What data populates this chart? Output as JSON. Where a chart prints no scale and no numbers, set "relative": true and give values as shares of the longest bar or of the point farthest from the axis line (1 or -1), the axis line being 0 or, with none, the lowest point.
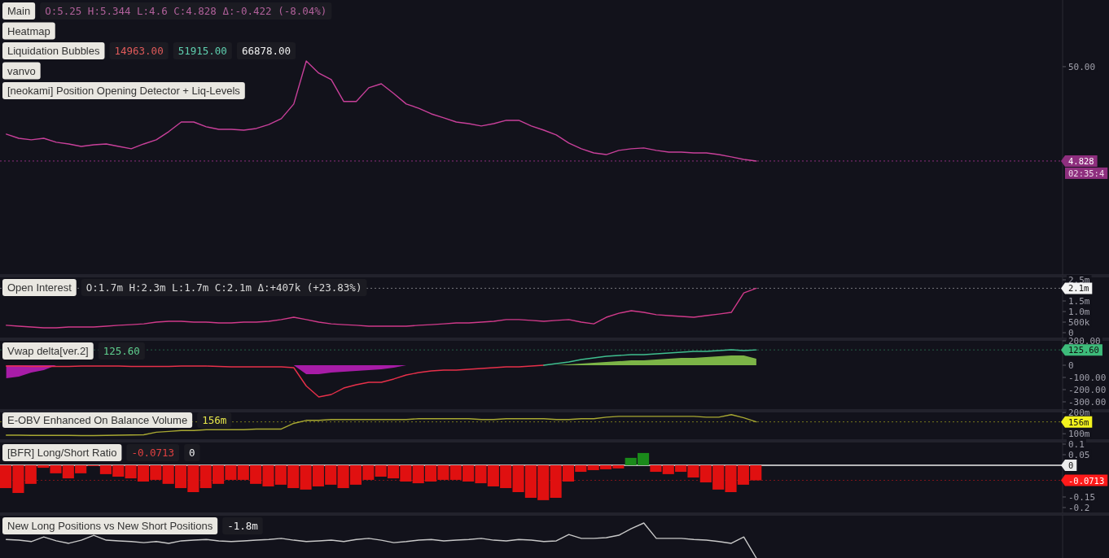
{
  "chart_data": [
    {
      "type": "line",
      "title": "Main",
      "subtitle": "O:5.25 H:5.344 L:4.6 C:4.828 Δ:-0.422 (-8.04%)",
      "annotations": [
        "Heatmap",
        "Liquidation Bubbles",
        "14963.00",
        "51915.00",
        "66878.00",
        "vanvo",
        "[neokami] Position Opening Detector + Liq-Levels",
        "02:35:4"
      ],
      "ylim": [
        -49.7,
        81.9
      ],
      "yticks": [
        {
          "value": 50,
          "label": "50.00"
        },
        {
          "value": 4.828,
          "label": "4.828"
        }
      ],
      "ref_lines": [
        {
          "axis": "y",
          "value": 4.828,
          "color": "#8e2f7e",
          "line_style": "dotted"
        }
      ],
      "categories": [
        null,
        null,
        null,
        null,
        null,
        null,
        null,
        null,
        null,
        null,
        null,
        null,
        null,
        null,
        null,
        null,
        null,
        null,
        null,
        null,
        null,
        null,
        null,
        null,
        null,
        null,
        null,
        null,
        null,
        null,
        null,
        null,
        null,
        null,
        null,
        null,
        null,
        null,
        null,
        null,
        null,
        null,
        null,
        null,
        null,
        null,
        null,
        null,
        null,
        null,
        null,
        null,
        null,
        null,
        null,
        null,
        null,
        null,
        null,
        null,
        null,
        null,
        null,
        null,
        null,
        null,
        null,
        null,
        null,
        null,
        null,
        null,
        null,
        null,
        null,
        null,
        null,
        null,
        null,
        null,
        null,
        null,
        null,
        null,
        null
      ],
      "series": [
        {
          "color": "#c8409a",
          "values": [
            17.7,
            15.7,
            15.0,
            15.7,
            13.8,
            13.0,
            11.8,
            12.6,
            13.0,
            11.8,
            10.7,
            13.0,
            15.0,
            18.9,
            23.5,
            23.5,
            21.2,
            20.0,
            20.0,
            19.6,
            20.4,
            22.3,
            25.1,
            32.1,
            52.7,
            46.9,
            43.8,
            33.3,
            33.3,
            39.9,
            41.8,
            37.1,
            32.1,
            30.1,
            27.4,
            25.5,
            23.5,
            22.7,
            21.6,
            22.7,
            24.3,
            24.3,
            21.6,
            19.6,
            17.3,
            13.4,
            10.7,
            8.7,
            7.9,
            9.9,
            10.7,
            11.1,
            9.9,
            9.1,
            9.1,
            8.7,
            8.7,
            7.9,
            6.8,
            5.6,
            4.828,
            null,
            null,
            null,
            null,
            null,
            null,
            null,
            null,
            null,
            null,
            null,
            null,
            null,
            null,
            null,
            null,
            null,
            null,
            null,
            null,
            null,
            null,
            null,
            null
          ]
        }
      ]
    },
    {
      "type": "line",
      "title": "Open Interest",
      "subtitle": "O:1.7m H:2.3m L:1.7m C:2.1m Δ:+407k (+23.83%)",
      "categories": [
        null,
        null,
        null,
        null,
        null,
        null,
        null,
        null,
        null,
        null,
        null,
        null,
        null,
        null,
        null,
        null,
        null,
        null,
        null,
        null,
        null,
        null,
        null,
        null,
        null,
        null,
        null,
        null,
        null,
        null,
        null,
        null,
        null,
        null,
        null,
        null,
        null,
        null,
        null,
        null,
        null,
        null,
        null,
        null,
        null,
        null,
        null,
        null,
        null,
        null,
        null,
        null,
        null,
        null,
        null,
        null,
        null,
        null,
        null,
        null,
        null,
        null,
        null,
        null,
        null,
        null,
        null,
        null,
        null,
        null,
        null,
        null,
        null,
        null,
        null,
        null,
        null,
        null,
        null,
        null,
        null,
        null,
        null,
        null,
        null
      ],
      "ylim": [
        -269000,
        2654000
      ],
      "yticks": [
        0,
        {
          "value": 500000,
          "label": "500k"
        },
        {
          "value": 1000000,
          "label": "1.0m"
        },
        {
          "value": 1500000,
          "label": "1.5m"
        },
        {
          "value": 2500000,
          "label": "2.5m"
        }
      ],
      "ref_lines": [
        {
          "axis": "y",
          "value": 2100000,
          "label": "2.1m",
          "color": "#f4f4f4"
        }
      ],
      "series": [
        {
          "color": "#d03a8a",
          "values": [
            350000,
            310000,
            270000,
            230000,
            230000,
            270000,
            270000,
            270000,
            310000,
            350000,
            380000,
            420000,
            500000,
            540000,
            540000,
            500000,
            500000,
            460000,
            460000,
            500000,
            500000,
            540000,
            620000,
            730000,
            620000,
            500000,
            420000,
            380000,
            350000,
            310000,
            310000,
            310000,
            310000,
            350000,
            380000,
            420000,
            460000,
            460000,
            500000,
            540000,
            620000,
            620000,
            580000,
            540000,
            580000,
            620000,
            500000,
            420000,
            730000,
            920000,
            1040000,
            960000,
            850000,
            810000,
            770000,
            730000,
            810000,
            880000,
            960000,
            1880000,
            2100000,
            null,
            null,
            null,
            null,
            null,
            null,
            null,
            null,
            null,
            null,
            null,
            null,
            null,
            null,
            null,
            null,
            null,
            null,
            null,
            null,
            null,
            null,
            null,
            null
          ]
        }
      ]
    },
    {
      "type": "line",
      "title": "Vwap delta[ver.2]",
      "annotations": [
        "125.60"
      ],
      "categories": [
        null,
        null,
        null,
        null,
        null,
        null,
        null,
        null,
        null,
        null,
        null,
        null,
        null,
        null,
        null,
        null,
        null,
        null,
        null,
        null,
        null,
        null,
        null,
        null,
        null,
        null,
        null,
        null,
        null,
        null,
        null,
        null,
        null,
        null,
        null,
        null,
        null,
        null,
        null,
        null,
        null,
        null,
        null,
        null,
        null,
        null,
        null,
        null,
        null,
        null,
        null,
        null,
        null,
        null,
        null,
        null,
        null,
        null,
        null,
        null,
        null,
        null,
        null,
        null,
        null,
        null,
        null,
        null,
        null,
        null,
        null,
        null,
        null,
        null,
        null,
        null,
        null,
        null,
        null,
        null,
        null,
        null,
        null,
        null,
        null
      ],
      "ylim": [
        -366.7,
        206.7
      ],
      "yticks": [
        {
          "value": 200,
          "label": "200.00"
        },
        0,
        {
          "value": -100,
          "label": "-100.00"
        },
        {
          "value": -200,
          "label": "-200.00"
        },
        {
          "value": -300,
          "label": "-300.00"
        }
      ],
      "ref_lines": [
        {
          "axis": "y",
          "value": 125.6,
          "label": "125.60",
          "color": "#3dbb7a"
        }
      ],
      "series": [
        {
          "type": "area",
          "color": "#c21fbf",
          "values": [
            -107,
            -93,
            -60,
            -40,
            0,
            null,
            null,
            null,
            null,
            null,
            null,
            null,
            null,
            null,
            null,
            null,
            null,
            null,
            null,
            null,
            null,
            null,
            null,
            0,
            -73,
            -73,
            -60,
            -53,
            -47,
            -40,
            -33,
            -20,
            0,
            null,
            null,
            null,
            null,
            null,
            null,
            null,
            null,
            null,
            null,
            null,
            null,
            null,
            null,
            null,
            null,
            null,
            null,
            null,
            null,
            null,
            null,
            null,
            null,
            null,
            null,
            null,
            null,
            null,
            null,
            null,
            null,
            null,
            null,
            null,
            null,
            null,
            null,
            null,
            null,
            null,
            null,
            null,
            null,
            null,
            null,
            null,
            null,
            null,
            null,
            null,
            null
          ]
        },
        {
          "type": "area",
          "color": "#8fd14f",
          "values": [
            null,
            null,
            null,
            null,
            null,
            null,
            null,
            null,
            null,
            null,
            null,
            null,
            null,
            null,
            null,
            null,
            null,
            null,
            null,
            null,
            null,
            null,
            null,
            null,
            null,
            null,
            null,
            null,
            null,
            null,
            null,
            null,
            null,
            null,
            null,
            null,
            null,
            null,
            null,
            null,
            null,
            null,
            null,
            null,
            0,
            7,
            13,
            20,
            27,
            33,
            40,
            40,
            47,
            53,
            60,
            60,
            67,
            73,
            80,
            80,
            53,
            null,
            null,
            null,
            null,
            null,
            null,
            null,
            null,
            null,
            null,
            null,
            null,
            null,
            null,
            null,
            null,
            null,
            null,
            null,
            null,
            null,
            null,
            null,
            null
          ]
        },
        {
          "color": "#e8304a",
          "values": [
            -7,
            -7,
            -10,
            -10,
            -10,
            -10,
            -7,
            -7,
            -7,
            -7,
            -10,
            -10,
            -10,
            -10,
            -7,
            -7,
            -7,
            -10,
            -13,
            -13,
            -13,
            -13,
            -13,
            -20,
            -170,
            -260,
            -240,
            -187,
            -160,
            -140,
            -140,
            -113,
            -80,
            -60,
            -47,
            -40,
            -40,
            -33,
            -27,
            -20,
            -13,
            -13,
            -7,
            0,
            null,
            null,
            null,
            null,
            null,
            null,
            null,
            null,
            null,
            null,
            null,
            null,
            null,
            null,
            null,
            null,
            null,
            null,
            null,
            null,
            null,
            null,
            null,
            null,
            null,
            null,
            null,
            null,
            null,
            null,
            null,
            null,
            null,
            null,
            null,
            null,
            null,
            null,
            null,
            null,
            null
          ]
        },
        {
          "color": "#3fbf8f",
          "values": [
            null,
            null,
            null,
            null,
            null,
            null,
            null,
            null,
            null,
            null,
            null,
            null,
            null,
            null,
            null,
            null,
            null,
            null,
            null,
            null,
            null,
            null,
            null,
            null,
            null,
            null,
            null,
            null,
            null,
            null,
            null,
            null,
            null,
            null,
            null,
            null,
            null,
            null,
            null,
            null,
            null,
            null,
            null,
            0,
            13,
            27,
            47,
            60,
            73,
            80,
            87,
            87,
            93,
            100,
            107,
            113,
            113,
            120,
            127,
            120,
            125.6,
            null,
            null,
            null,
            null,
            null,
            null,
            null,
            null,
            null,
            null,
            null,
            null,
            null,
            null,
            null,
            null,
            null,
            null,
            null,
            null,
            null,
            null,
            null,
            null
          ]
        }
      ]
    },
    {
      "type": "line",
      "title": "E-OBV Enhanced On Balance Volume",
      "annotations": [
        "156m"
      ],
      "categories": [
        null,
        null,
        null,
        null,
        null,
        null,
        null,
        null,
        null,
        null,
        null,
        null,
        null,
        null,
        null,
        null,
        null,
        null,
        null,
        null,
        null,
        null,
        null,
        null,
        null,
        null,
        null,
        null,
        null,
        null,
        null,
        null,
        null,
        null,
        null,
        null,
        null,
        null,
        null,
        null,
        null,
        null,
        null,
        null,
        null,
        null,
        null,
        null,
        null,
        null,
        null,
        null,
        null,
        null,
        null,
        null,
        null,
        null,
        null,
        null,
        null,
        null,
        null,
        null,
        null,
        null,
        null,
        null,
        null,
        null,
        null,
        null,
        null,
        null,
        null,
        null,
        null,
        null,
        null,
        null,
        null,
        null,
        null,
        null,
        null
      ],
      "ylim": [
        70.1,
        204.5
      ],
      "yticks": [
        {
          "value": 200,
          "label": "200m"
        },
        {
          "value": 100,
          "label": "100m"
        }
      ],
      "ref_lines": [
        {
          "axis": "y",
          "value": 156,
          "label": "156m",
          "color": "#f2f21e"
        }
      ],
      "series": [
        {
          "color": "#a8a832",
          "values": [
            93,
            93,
            92,
            92,
            92,
            92,
            91,
            91,
            92,
            93,
            94,
            95,
            107,
            111,
            115,
            115,
            119,
            119,
            119,
            119,
            122,
            122,
            122,
            149,
            163,
            163,
            167,
            167,
            167,
            167,
            167,
            167,
            167,
            171,
            171,
            171,
            171,
            171,
            167,
            167,
            171,
            171,
            171,
            171,
            167,
            167,
            171,
            171,
            178,
            182,
            182,
            182,
            182,
            182,
            182,
            182,
            178,
            178,
            190,
            175,
            156,
            null,
            null,
            null,
            null,
            null,
            null,
            null,
            null,
            null,
            null,
            null,
            null,
            null,
            null,
            null,
            null,
            null,
            null,
            null,
            null,
            null,
            null,
            null,
            null
          ]
        }
      ]
    },
    {
      "type": "bar",
      "title": "[BFR] Long/Short Ratio",
      "annotations": [
        "-0.0713",
        "0"
      ],
      "categories": [
        null,
        null,
        null,
        null,
        null,
        null,
        null,
        null,
        null,
        null,
        null,
        null,
        null,
        null,
        null,
        null,
        null,
        null,
        null,
        null,
        null,
        null,
        null,
        null,
        null,
        null,
        null,
        null,
        null,
        null,
        null,
        null,
        null,
        null,
        null,
        null,
        null,
        null,
        null,
        null,
        null,
        null,
        null,
        null,
        null,
        null,
        null,
        null,
        null,
        null,
        null,
        null,
        null,
        null,
        null,
        null,
        null,
        null,
        null,
        null,
        null,
        null,
        null,
        null,
        null,
        null,
        null,
        null,
        null,
        null,
        null,
        null,
        null,
        null,
        null,
        null,
        null,
        null,
        null,
        null,
        null,
        null,
        null,
        null,
        null
      ],
      "ylim": [
        -0.227,
        0.1115
      ],
      "yticks": [
        0.1,
        0.05,
        -0.15,
        -0.2
      ],
      "ref_lines": [
        {
          "axis": "y",
          "value": 0,
          "label": "0",
          "color": "#ececec",
          "line_style": "solid"
        },
        {
          "axis": "y",
          "value": -0.0713,
          "label": "-0.0713",
          "color": "#ff1a1a"
        }
      ],
      "series": [
        {
          "values": [
            -0.108,
            -0.131,
            -0.088,
            -0.012,
            -0.038,
            -0.062,
            -0.038,
            -0.004,
            -0.042,
            -0.054,
            -0.062,
            -0.077,
            -0.069,
            -0.088,
            -0.108,
            -0.127,
            -0.108,
            -0.088,
            -0.069,
            -0.069,
            -0.088,
            -0.1,
            -0.092,
            -0.108,
            -0.115,
            -0.1,
            -0.092,
            -0.108,
            -0.092,
            -0.069,
            -0.054,
            -0.062,
            -0.077,
            -0.085,
            -0.077,
            -0.069,
            -0.069,
            -0.077,
            -0.085,
            -0.1,
            -0.108,
            -0.127,
            -0.154,
            -0.165,
            -0.154,
            -0.077,
            -0.031,
            -0.023,
            -0.019,
            -0.015,
            0.035,
            0.058,
            -0.031,
            -0.042,
            -0.031,
            -0.058,
            -0.081,
            -0.115,
            -0.127,
            -0.092,
            -0.0713,
            null,
            null,
            null,
            null,
            null,
            null,
            null,
            null,
            null,
            null,
            null,
            null,
            null,
            null,
            null,
            null,
            null,
            null,
            null,
            null,
            null,
            null,
            null,
            null
          ],
          "colors": [
            "#e01010",
            "#e01010",
            "#e01010",
            "#e01010",
            "#e01010",
            "#e01010",
            "#e01010",
            "#e01010",
            "#e01010",
            "#e01010",
            "#e01010",
            "#e01010",
            "#e01010",
            "#e01010",
            "#e01010",
            "#e01010",
            "#e01010",
            "#e01010",
            "#e01010",
            "#e01010",
            "#e01010",
            "#e01010",
            "#e01010",
            "#e01010",
            "#e01010",
            "#e01010",
            "#e01010",
            "#e01010",
            "#e01010",
            "#e01010",
            "#e01010",
            "#e01010",
            "#e01010",
            "#e01010",
            "#e01010",
            "#e01010",
            "#e01010",
            "#e01010",
            "#e01010",
            "#e01010",
            "#e01010",
            "#e01010",
            "#e01010",
            "#e01010",
            "#e01010",
            "#e01010",
            "#e01010",
            "#e01010",
            "#e01010",
            "#e01010",
            "#1a8a1a",
            "#1a8a1a",
            "#e01010",
            "#e01010",
            "#e01010",
            "#e01010",
            "#e01010",
            "#e01010",
            "#e01010",
            "#e01010",
            "#e01010",
            null,
            null,
            null,
            null,
            null,
            null,
            null,
            null,
            null,
            null,
            null,
            null,
            null,
            null,
            null,
            null,
            null,
            null,
            null,
            null,
            null,
            null,
            null,
            null
          ]
        }
      ]
    },
    {
      "type": "line",
      "title": "New Long Positions vs New Short Positions",
      "annotations": [
        "-1.8m"
      ],
      "relative": true,
      "categories": [
        null,
        null,
        null,
        null,
        null,
        null,
        null,
        null,
        null,
        null,
        null,
        null,
        null,
        null,
        null,
        null,
        null,
        null,
        null,
        null,
        null,
        null,
        null,
        null,
        null,
        null,
        null,
        null,
        null,
        null,
        null,
        null,
        null,
        null,
        null,
        null,
        null,
        null,
        null,
        null,
        null,
        null,
        null,
        null,
        null,
        null,
        null,
        null,
        null,
        null,
        null,
        null,
        null,
        null,
        null,
        null,
        null,
        null,
        null,
        null,
        null,
        null,
        null,
        null,
        null,
        null,
        null,
        null,
        null,
        null,
        null,
        null,
        null,
        null,
        null,
        null,
        null,
        null,
        null,
        null,
        null,
        null,
        null,
        null,
        null
      ],
      "series": [
        {
          "color": "#c8c8c8",
          "values": [
            0.53,
            0.51,
            0.47,
            0.6,
            0.49,
            0.42,
            0.51,
            0.65,
            0.51,
            0.49,
            0.47,
            0.44,
            0.47,
            0.42,
            0.49,
            0.51,
            0.53,
            0.49,
            0.47,
            0.49,
            0.51,
            0.53,
            0.56,
            0.51,
            0.47,
            0.49,
            0.51,
            0.47,
            0.53,
            0.56,
            0.51,
            0.44,
            0.47,
            0.51,
            0.53,
            0.49,
            0.51,
            0.53,
            0.56,
            0.51,
            0.49,
            0.53,
            0.51,
            0.47,
            0.49,
            0.67,
            0.56,
            0.56,
            0.58,
            0.65,
            0.84,
            1,
            0.56,
            0.56,
            0.56,
            0.53,
            0.51,
            0.47,
            0.42,
            0.6,
            0,
            null,
            null,
            null,
            null,
            null,
            null,
            null,
            null,
            null,
            null,
            null,
            null,
            null,
            null,
            null,
            null,
            null,
            null,
            null,
            null,
            null,
            null,
            null,
            null
          ]
        }
      ]
    }
  ]
}
